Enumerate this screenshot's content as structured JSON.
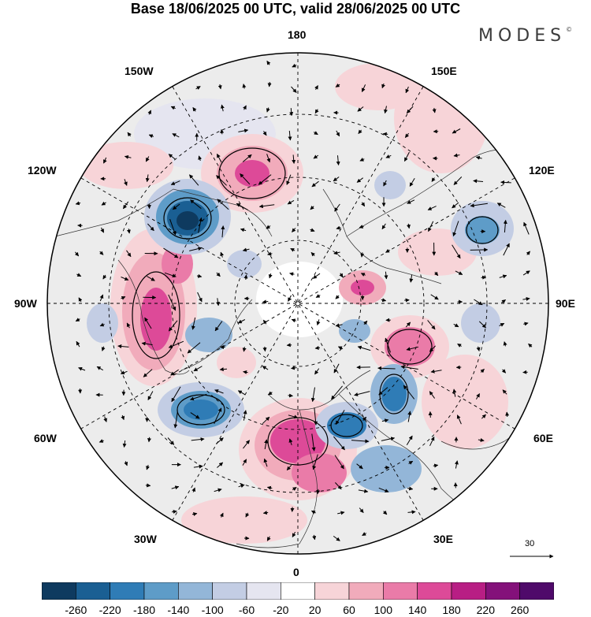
{
  "title": "Base 18/06/2025 00 UTC, valid 28/06/2025 00 UTC",
  "brand": "MODES",
  "brand_mark": "©",
  "longitude_labels": {
    "top": "180",
    "bottom": "0",
    "left": "90W",
    "right": "90E",
    "w150": "150W",
    "e150": "150E",
    "w120": "120W",
    "e120": "120E",
    "w60": "60W",
    "e60": "60E",
    "w30": "30W",
    "e30": "30E"
  },
  "reference_vector": {
    "label": "30"
  },
  "legend": {
    "ticks": [
      "-260",
      "-220",
      "-180",
      "-140",
      "-100",
      "-60",
      "-20",
      "20",
      "60",
      "100",
      "140",
      "180",
      "220",
      "260"
    ],
    "colors": [
      "#0e3a5f",
      "#1a5f93",
      "#2f7cb6",
      "#5e9cc8",
      "#93b6d8",
      "#c3cde4",
      "#e5e5f0",
      "#ffffff",
      "#f7d4d8",
      "#f1abbb",
      "#ea7ba8",
      "#dd4a98",
      "#b81e84",
      "#84117a",
      "#4f0a6a"
    ]
  },
  "anomaly_colors": {
    "neg_strong": "#0e3a5f",
    "neg_mid": "#2f7cb6",
    "neg_light": "#93b6d8",
    "neg_faint": "#e5e5f0",
    "pos_faint": "#f7d4d8",
    "pos_light": "#f1abbb",
    "pos_mid": "#ea7ba8",
    "pos_strong": "#dd4a98",
    "land_gray": "#e8e8e8"
  }
}
